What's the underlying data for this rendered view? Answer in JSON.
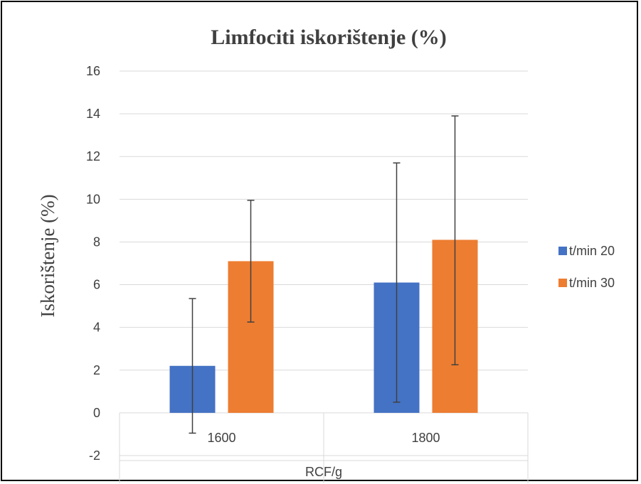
{
  "chart_data": {
    "type": "bar",
    "title": "Limfociti iskorištenje (%)",
    "xlabel": "RCF/g",
    "ylabel": "Iskorištenje (%)",
    "categories": [
      "1600",
      "1800"
    ],
    "ylim": [
      -2,
      16
    ],
    "yticks": [
      "-2",
      "0",
      "2",
      "4",
      "6",
      "8",
      "10",
      "12",
      "14",
      "16"
    ],
    "grid": true,
    "legend_position": "right",
    "series": [
      {
        "name": "t/min 20",
        "color": "#4472C4",
        "values": [
          2.2,
          6.1
        ],
        "error_low": [
          -0.95,
          0.5
        ],
        "error_high": [
          5.35,
          11.7
        ]
      },
      {
        "name": "t/min 30",
        "color": "#ED7D31",
        "values": [
          7.1,
          8.1
        ],
        "error_low": [
          4.25,
          2.25
        ],
        "error_high": [
          9.95,
          13.9
        ]
      }
    ]
  }
}
